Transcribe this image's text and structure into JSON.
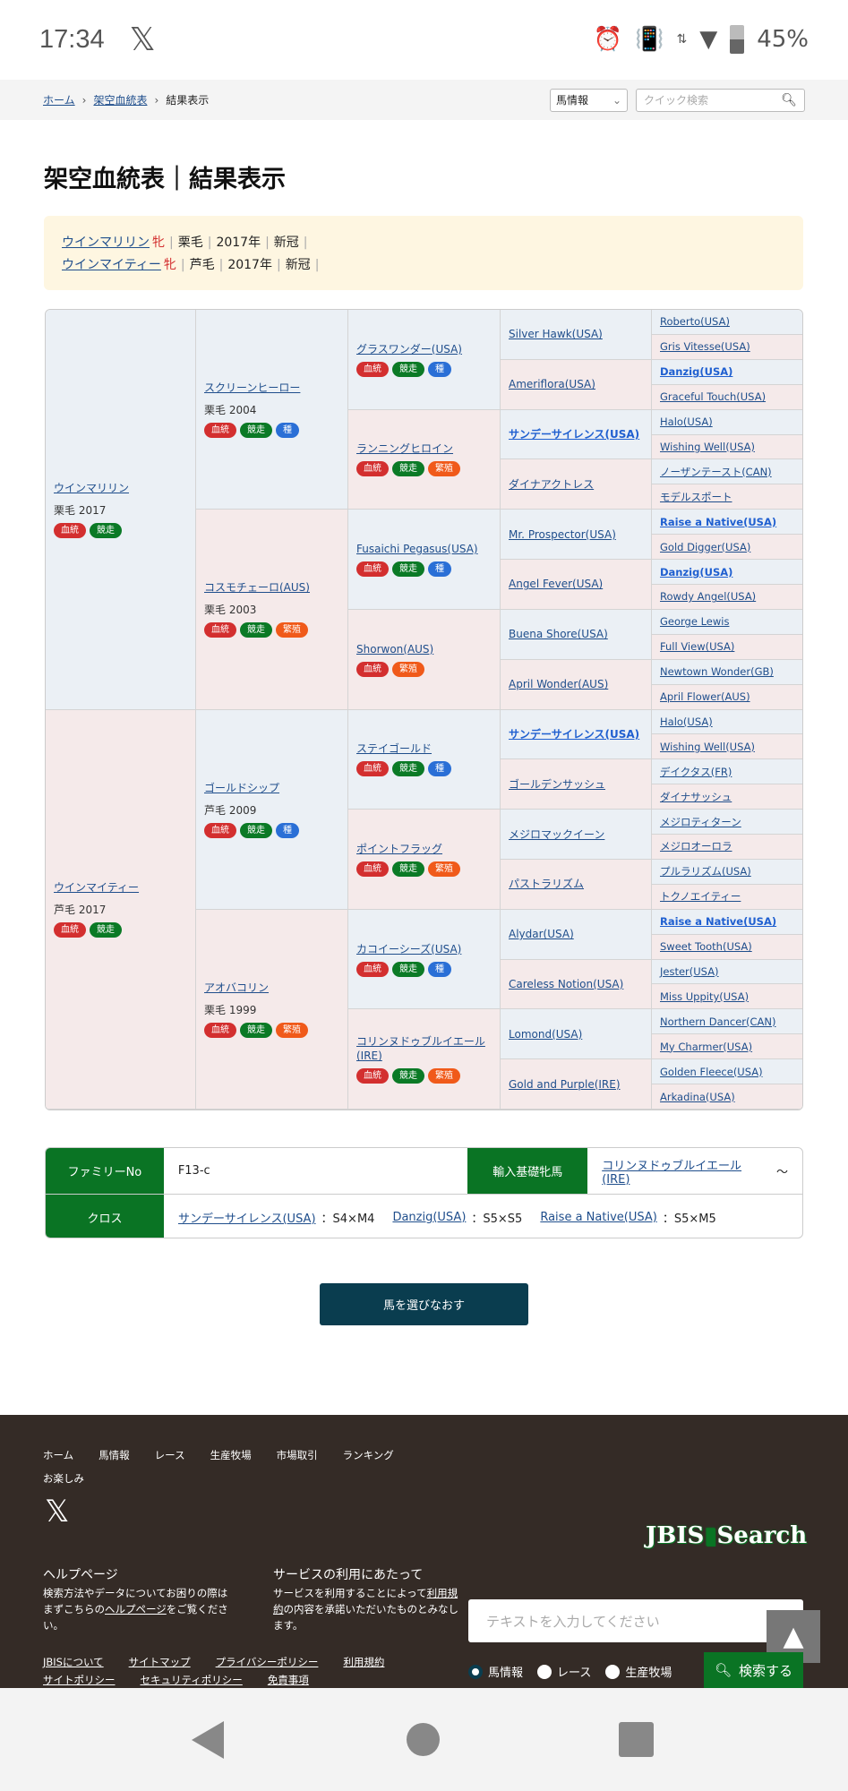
{
  "status_bar": {
    "time": "17:34",
    "app_icon": "x-logo",
    "battery": "45%",
    "icons": [
      "alarm-icon",
      "vibrate-icon",
      "data-arrows-icon",
      "wifi-icon",
      "battery-icon"
    ]
  },
  "breadcrumb": [
    {
      "label": "ホーム"
    },
    {
      "label": "架空血統表"
    },
    {
      "label": "結果表示"
    }
  ],
  "quick_search": {
    "category": "馬情報",
    "placeholder": "クイック検索"
  },
  "page_title": "架空血統表｜結果表示",
  "summary": [
    {
      "name": "ウインマリリン",
      "sex": "牝",
      "color": "栗毛",
      "year": "2017年",
      "status": "新冠"
    },
    {
      "name": "ウインマイティー",
      "sex": "牝",
      "color": "芦毛",
      "year": "2017年",
      "status": "新冠"
    }
  ],
  "badge_colors": {
    "血統": "#d32f2f",
    "競走": "#0b7a26",
    "種": "#2a6fd6",
    "繁殖": "#f05a1a"
  },
  "pedigree": {
    "gen1": [
      {
        "name": "ウインマリリン",
        "info": "栗毛 2017",
        "badges": [
          "血統",
          "競走"
        ]
      },
      {
        "name": "ウインマイティー",
        "info": "芦毛 2017",
        "badges": [
          "血統",
          "競走"
        ]
      }
    ],
    "gen2": [
      {
        "name": "スクリーンヒーロー",
        "info": "栗毛 2004",
        "badges": [
          "血統",
          "競走",
          "種"
        ]
      },
      {
        "name": "コスモチェーロ(AUS)",
        "info": "栗毛 2003",
        "badges": [
          "血統",
          "競走",
          "繁殖"
        ]
      },
      {
        "name": "ゴールドシップ",
        "info": "芦毛 2009",
        "badges": [
          "血統",
          "競走",
          "種"
        ]
      },
      {
        "name": "アオバコリン",
        "info": "栗毛 1999",
        "badges": [
          "血統",
          "競走",
          "繁殖"
        ]
      }
    ],
    "gen3": [
      {
        "name": "グラスワンダー(USA)",
        "badges": [
          "血統",
          "競走",
          "種"
        ]
      },
      {
        "name": "ランニングヒロイン",
        "badges": [
          "血統",
          "競走",
          "繁殖"
        ]
      },
      {
        "name": "Fusaichi Pegasus(USA)",
        "badges": [
          "血統",
          "競走",
          "種"
        ]
      },
      {
        "name": "Shorwon(AUS)",
        "badges": [
          "血統",
          "繁殖"
        ]
      },
      {
        "name": "ステイゴールド",
        "badges": [
          "血統",
          "競走",
          "種"
        ]
      },
      {
        "name": "ポイントフラッグ",
        "badges": [
          "血統",
          "競走",
          "繁殖"
        ]
      },
      {
        "name": "カコイーシーズ(USA)",
        "badges": [
          "血統",
          "競走",
          "種"
        ]
      },
      {
        "name": "コリンヌドゥブルイエール(IRE)",
        "badges": [
          "血統",
          "競走",
          "繁殖"
        ]
      }
    ],
    "gen4": [
      {
        "name": "Silver Hawk(USA)"
      },
      {
        "name": "Ameriflora(USA)"
      },
      {
        "name": "サンデーサイレンス(USA)",
        "cross": true
      },
      {
        "name": "ダイナアクトレス"
      },
      {
        "name": "Mr. Prospector(USA)"
      },
      {
        "name": "Angel Fever(USA)"
      },
      {
        "name": "Buena Shore(USA)"
      },
      {
        "name": "April Wonder(AUS)"
      },
      {
        "name": "サンデーサイレンス(USA)",
        "cross": true
      },
      {
        "name": "ゴールデンサッシュ"
      },
      {
        "name": "メジロマックイーン"
      },
      {
        "name": "パストラリズム"
      },
      {
        "name": "Alydar(USA)"
      },
      {
        "name": "Careless Notion(USA)"
      },
      {
        "name": "Lomond(USA)"
      },
      {
        "name": "Gold and Purple(IRE)"
      }
    ],
    "gen5": [
      {
        "name": "Roberto(USA)"
      },
      {
        "name": "Gris Vitesse(USA)"
      },
      {
        "name": "Danzig(USA)",
        "cross": true
      },
      {
        "name": "Graceful Touch(USA)"
      },
      {
        "name": "Halo(USA)"
      },
      {
        "name": "Wishing Well(USA)"
      },
      {
        "name": "ノーザンテースト(CAN)"
      },
      {
        "name": "モデルスポート"
      },
      {
        "name": "Raise a Native(USA)",
        "cross": true
      },
      {
        "name": "Gold Digger(USA)"
      },
      {
        "name": "Danzig(USA)",
        "cross": true
      },
      {
        "name": "Rowdy Angel(USA)"
      },
      {
        "name": "George Lewis"
      },
      {
        "name": "Full View(USA)"
      },
      {
        "name": "Newtown Wonder(GB)"
      },
      {
        "name": "April Flower(AUS)"
      },
      {
        "name": "Halo(USA)"
      },
      {
        "name": "Wishing Well(USA)"
      },
      {
        "name": "デイクタス(FR)"
      },
      {
        "name": "ダイナサッシュ"
      },
      {
        "name": "メジロティターン"
      },
      {
        "name": "メジロオーロラ"
      },
      {
        "name": "プルラリズム(USA)"
      },
      {
        "name": "トクノエイティー"
      },
      {
        "name": "Raise a Native(USA)",
        "cross": true
      },
      {
        "name": "Sweet Tooth(USA)"
      },
      {
        "name": "Jester(USA)"
      },
      {
        "name": "Miss Uppity(USA)"
      },
      {
        "name": "Northern Dancer(CAN)"
      },
      {
        "name": "My Charmer(USA)"
      },
      {
        "name": "Golden Fleece(USA)"
      },
      {
        "name": "Arkadina(USA)"
      }
    ]
  },
  "family": {
    "family_no_label": "ファミリーNo",
    "family_no": "F13-c",
    "import_label": "輸入基礎牝馬",
    "import_mare": "コリンヌドゥブルイエール(IRE)",
    "import_suffix": "～",
    "cross_label": "クロス",
    "crosses": [
      {
        "name": "サンデーサイレンス(USA)",
        "value": "：S4×M4"
      },
      {
        "name": "Danzig(USA)",
        "value": "：S5×S5"
      },
      {
        "name": "Raise a Native(USA)",
        "value": "：S5×M5"
      }
    ]
  },
  "reselect_button": "馬を選びなおす",
  "footer": {
    "nav": [
      "ホーム",
      "馬情報",
      "レース",
      "生産牧場",
      "市場取引",
      "ランキング"
    ],
    "nav_extra": "お楽しみ",
    "help_title": "ヘルプページ",
    "help_text_1": "検索方法やデータについてお困りの際はまずこちらの",
    "help_link": "ヘルプページ",
    "help_text_2": "をご覧ください。",
    "terms_title": "サービスの利用にあたって",
    "terms_text_1": "サービスを利用することによって",
    "terms_link": "利用規約",
    "terms_text_2": "の内容を承諾いただいたものとみなします。",
    "links_1": [
      "JBISについて",
      "サイトマップ",
      "プライバシーポリシー",
      "利用規約"
    ],
    "links_2": [
      "サイトポリシー",
      "セキュリティポリシー",
      "免責事項"
    ],
    "logo": "JBIS Search",
    "search_placeholder": "テキストを入力してください",
    "radios": [
      {
        "label": "馬情報",
        "checked": true
      },
      {
        "label": "レース",
        "checked": false
      },
      {
        "label": "生産牧場",
        "checked": false
      }
    ],
    "search_button": "検索する",
    "to_top": "▲"
  }
}
